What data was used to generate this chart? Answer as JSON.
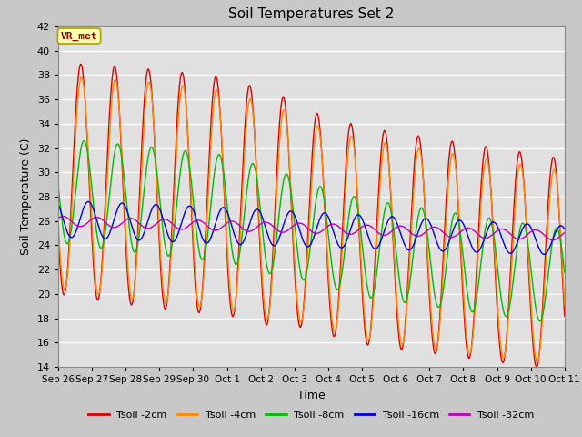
{
  "title": "Soil Temperatures Set 2",
  "xlabel": "Time",
  "ylabel": "Soil Temperature (C)",
  "ylim": [
    14,
    42
  ],
  "yticks": [
    14,
    16,
    18,
    20,
    22,
    24,
    26,
    28,
    30,
    32,
    34,
    36,
    38,
    40,
    42
  ],
  "fig_bg_color": "#c8c8c8",
  "plot_bg_color": "#e0e0e0",
  "grid_color": "#ffffff",
  "legend_label": "VR_met",
  "series": [
    {
      "label": "Tsoil -2cm",
      "color": "#dd0000"
    },
    {
      "label": "Tsoil -4cm",
      "color": "#ff8800"
    },
    {
      "label": "Tsoil -8cm",
      "color": "#00bb00"
    },
    {
      "label": "Tsoil -16cm",
      "color": "#0000dd"
    },
    {
      "label": "Tsoil -32cm",
      "color": "#bb00bb"
    }
  ],
  "x_tick_labels": [
    "Sep 26",
    "Sep 27",
    "Sep 28",
    "Sep 29",
    "Sep 30",
    "Oct 1",
    "Oct 2",
    "Oct 3",
    "Oct 4",
    "Oct 5",
    "Oct 6",
    "Oct 7",
    "Oct 8",
    "Oct 9",
    "Oct 10",
    "Oct 11"
  ],
  "num_days": 15,
  "points_per_day": 144
}
